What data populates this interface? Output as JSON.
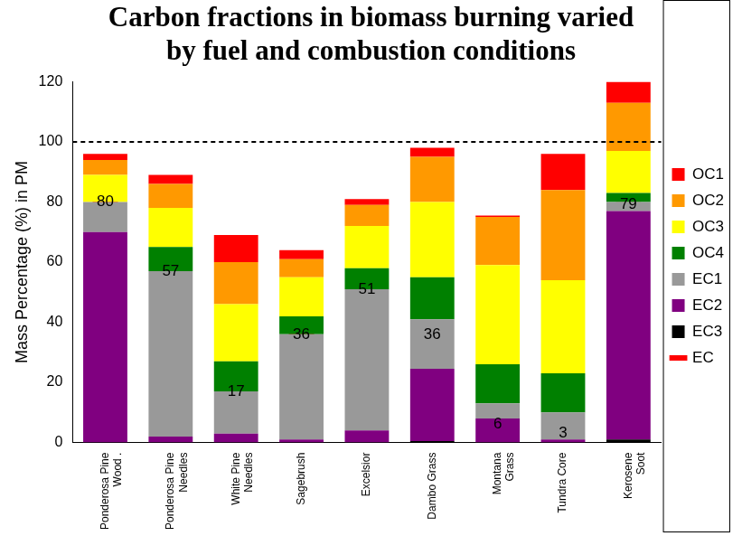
{
  "chart_data": {
    "type": "bar",
    "title": "Carbon fractions in biomass burning varied by fuel and combustion conditions",
    "y_label": "Mass Percentage (%) in PM",
    "categories": [
      "Ponderosa Pine Wood .",
      "Ponderosa Pine Needles",
      "White Pine Needles",
      "Sagebrush",
      "Excelsior",
      "Dambo Grass",
      "Montana Grass",
      "Tundra Core",
      "Kerosene Soot"
    ],
    "stacked": true,
    "series": [
      {
        "name": "OC1",
        "color": "#ff0000",
        "values": [
          2,
          3,
          9,
          3,
          2,
          3,
          0.5,
          12,
          7
        ]
      },
      {
        "name": "OC2",
        "color": "#ff9900",
        "values": [
          5,
          8,
          14,
          6,
          7,
          15,
          16,
          30,
          16
        ]
      },
      {
        "name": "OC3",
        "color": "#ffff00",
        "values": [
          9,
          13,
          19,
          13,
          14,
          25,
          33,
          31,
          14
        ]
      },
      {
        "name": "OC4",
        "color": "#008000",
        "values": [
          0,
          8,
          10,
          6,
          7,
          14,
          13,
          13,
          3
        ]
      },
      {
        "name": "EC1",
        "color": "#999999",
        "values": [
          10,
          55,
          14,
          35,
          47,
          16.5,
          5,
          9,
          3
        ]
      },
      {
        "name": "EC2",
        "color": "#800080",
        "values": [
          70,
          2,
          3,
          1,
          4,
          24,
          8,
          1,
          76
        ]
      },
      {
        "name": "EC3",
        "color": "#000000",
        "values": [
          0,
          0,
          0,
          0,
          0,
          0.5,
          0,
          0,
          1
        ]
      },
      {
        "name": "EC",
        "color": "#ff0000",
        "type": "line",
        "marker": "line",
        "data_labels": true,
        "values": [
          80,
          57,
          17,
          36,
          51,
          36,
          6,
          3,
          79
        ]
      }
    ],
    "reference_line": {
      "value": 100,
      "line_style": "dashed"
    },
    "ylim": [
      0,
      120
    ],
    "yticks": [
      0,
      20,
      40,
      60,
      80,
      100,
      120
    ],
    "grid": false,
    "legend": "right"
  }
}
